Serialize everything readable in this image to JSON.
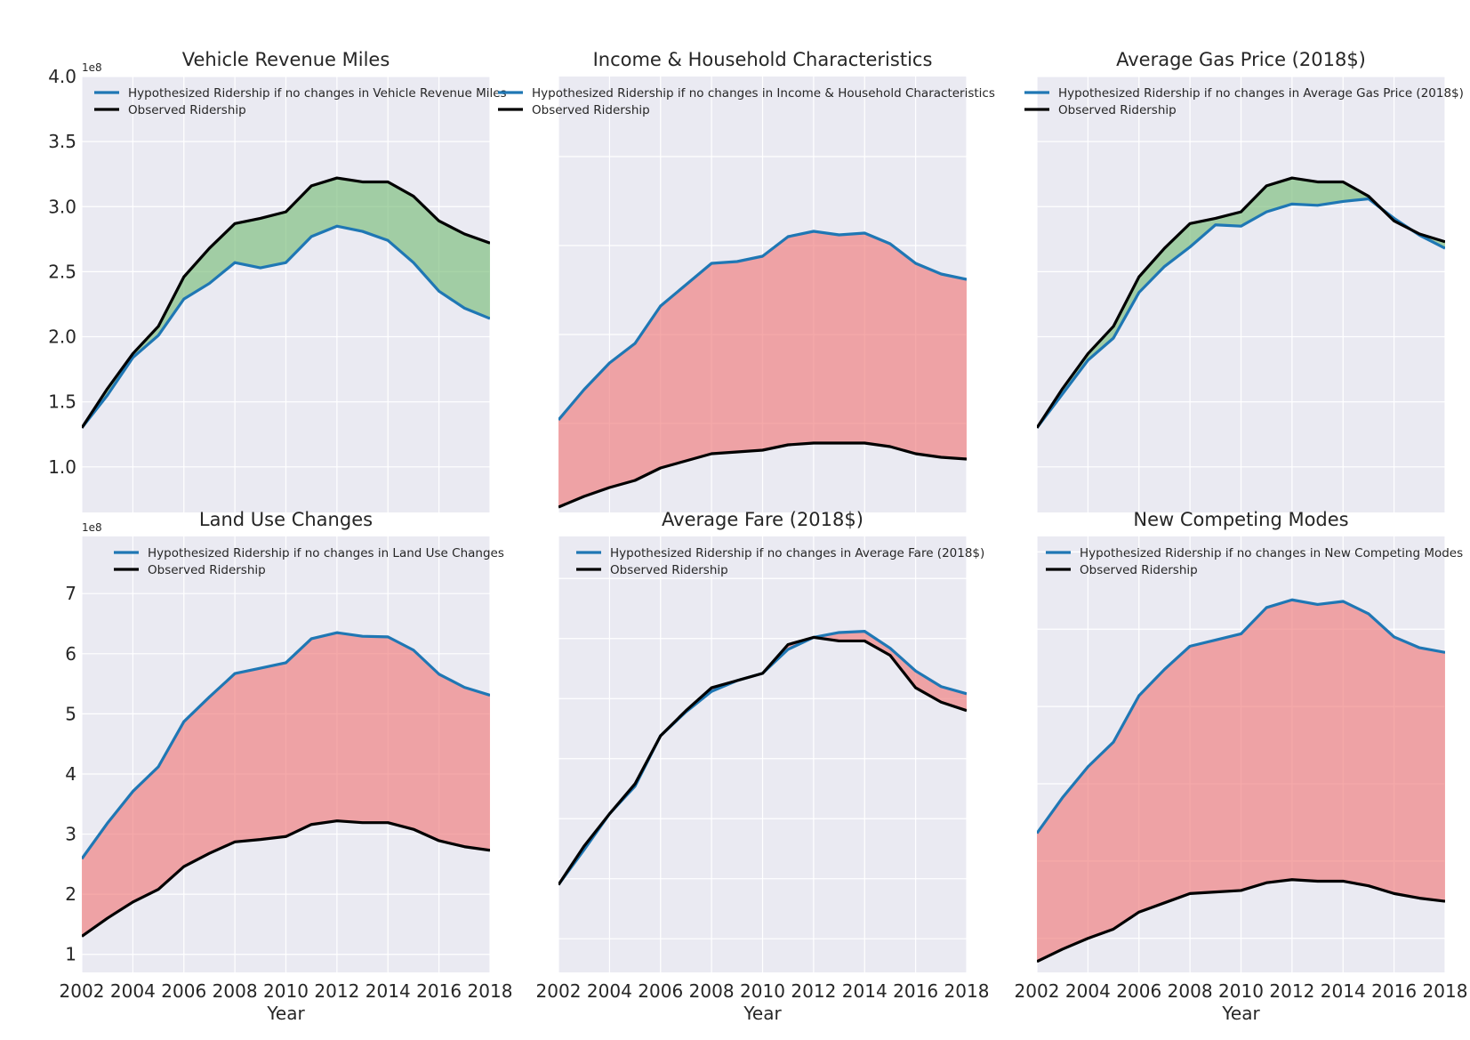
{
  "chart_data": [
    {
      "type": "line",
      "title": "Vehicle Revenue Miles",
      "xlabel": "",
      "ylabel": "",
      "x": [
        2002,
        2003,
        2004,
        2005,
        2006,
        2007,
        2008,
        2009,
        2010,
        2011,
        2012,
        2013,
        2014,
        2015,
        2016,
        2017,
        2018
      ],
      "xlim": [
        2002,
        2018
      ],
      "ylim": [
        0.65,
        4.0
      ],
      "yticks": [
        1.0,
        1.5,
        2.0,
        2.5,
        3.0,
        3.5,
        4.0
      ],
      "yticklabels": [
        "1.0",
        "1.5",
        "2.0",
        "2.5",
        "3.0",
        "3.5",
        "4.0"
      ],
      "xticklabels": [],
      "offset_text": "1e8",
      "series": [
        {
          "name": "Hypothesized Ridership if no changes in Vehicle Revenue Miles",
          "color": "#1f77b4",
          "values": [
            1.3,
            1.55,
            1.84,
            2.01,
            2.29,
            2.41,
            2.57,
            2.53,
            2.57,
            2.77,
            2.85,
            2.81,
            2.74,
            2.57,
            2.35,
            2.22,
            2.14
          ]
        },
        {
          "name": "Observed Ridership",
          "color": "#000000",
          "values": [
            1.3,
            1.6,
            1.87,
            2.08,
            2.46,
            2.68,
            2.87,
            2.91,
            2.96,
            3.16,
            3.22,
            3.19,
            3.19,
            3.08,
            2.89,
            2.79,
            2.72
          ]
        }
      ],
      "fill_color": "#7fbf7f",
      "legend": "top-left",
      "grid": true
    },
    {
      "type": "line",
      "title": "Income & Household Characteristics",
      "xlabel": "",
      "ylabel": "",
      "x": [
        2002,
        2003,
        2004,
        2005,
        2006,
        2007,
        2008,
        2009,
        2010,
        2011,
        2012,
        2013,
        2014,
        2015,
        2016,
        2017,
        2018
      ],
      "xlim": [
        2002,
        2018
      ],
      "ylim": [
        0.5,
        2.95
      ],
      "yticks": [
        1.0,
        1.5,
        2.0,
        2.5
      ],
      "yticklabels": [],
      "xticklabels": [],
      "offset_text": "",
      "series": [
        {
          "name": "Hypothesized Ridership if no changes in Income & Household Characteristics",
          "color": "#1f77b4",
          "values": [
            1.02,
            1.19,
            1.34,
            1.45,
            1.66,
            1.78,
            1.9,
            1.91,
            1.94,
            2.05,
            2.08,
            2.06,
            2.07,
            2.01,
            1.9,
            1.84,
            1.81
          ]
        },
        {
          "name": "Observed Ridership",
          "color": "#000000",
          "values": [
            0.53,
            0.59,
            0.64,
            0.68,
            0.75,
            0.79,
            0.83,
            0.84,
            0.85,
            0.88,
            0.89,
            0.89,
            0.89,
            0.87,
            0.83,
            0.81,
            0.8
          ]
        }
      ],
      "fill_color": "#f08080",
      "legend": "top-left",
      "grid": true
    },
    {
      "type": "line",
      "title": "Average Gas Price (2018$)",
      "xlabel": "",
      "ylabel": "",
      "x": [
        2002,
        2003,
        2004,
        2005,
        2006,
        2007,
        2008,
        2009,
        2010,
        2011,
        2012,
        2013,
        2014,
        2015,
        2016,
        2017,
        2018
      ],
      "xlim": [
        2002,
        2018
      ],
      "ylim": [
        0.65,
        4.0
      ],
      "yticks": [
        1.0,
        1.5,
        2.0,
        2.5,
        3.0,
        3.5,
        4.0
      ],
      "yticklabels": [],
      "xticklabels": [],
      "offset_text": "",
      "series": [
        {
          "name": "Hypothesized Ridership if no changes in Average Gas Price (2018$)",
          "color": "#1f77b4",
          "values": [
            1.3,
            1.56,
            1.82,
            1.99,
            2.34,
            2.54,
            2.69,
            2.86,
            2.85,
            2.96,
            3.02,
            3.01,
            3.04,
            3.06,
            2.91,
            2.78,
            2.68
          ]
        },
        {
          "name": "Observed Ridership",
          "color": "#000000",
          "values": [
            1.3,
            1.6,
            1.87,
            2.08,
            2.46,
            2.68,
            2.87,
            2.91,
            2.96,
            3.16,
            3.22,
            3.19,
            3.19,
            3.08,
            2.89,
            2.79,
            2.73
          ]
        }
      ],
      "fill_color": "#7fbf7f",
      "legend": "top-left",
      "grid": true
    },
    {
      "type": "line",
      "title": "Land Use Changes",
      "xlabel": "Year",
      "ylabel": "",
      "x": [
        2002,
        2003,
        2004,
        2005,
        2006,
        2007,
        2008,
        2009,
        2010,
        2011,
        2012,
        2013,
        2014,
        2015,
        2016,
        2017,
        2018
      ],
      "xlim": [
        2002,
        2018
      ],
      "ylim": [
        0.7,
        7.95
      ],
      "yticks": [
        1,
        2,
        3,
        4,
        5,
        6,
        7
      ],
      "yticklabels": [
        "1",
        "2",
        "3",
        "4",
        "5",
        "6",
        "7"
      ],
      "xticklabels": [
        "2002",
        "2004",
        "2006",
        "2008",
        "2010",
        "2012",
        "2014",
        "2016",
        "2018"
      ],
      "offset_text": "1e8",
      "series": [
        {
          "name": "Hypothesized Ridership if no changes in Land Use Changes",
          "color": "#1f77b4",
          "values": [
            2.59,
            3.18,
            3.71,
            4.12,
            4.87,
            5.28,
            5.67,
            5.76,
            5.85,
            6.25,
            6.35,
            6.29,
            6.28,
            6.06,
            5.66,
            5.44,
            5.31
          ]
        },
        {
          "name": "Observed Ridership",
          "color": "#000000",
          "values": [
            1.3,
            1.6,
            1.87,
            2.08,
            2.46,
            2.68,
            2.87,
            2.91,
            2.96,
            3.16,
            3.22,
            3.19,
            3.19,
            3.08,
            2.89,
            2.79,
            2.73
          ]
        }
      ],
      "fill_color": "#f08080",
      "legend": "top-right",
      "grid": true
    },
    {
      "type": "line",
      "title": "Average Fare (2018$)",
      "xlabel": "Year",
      "ylabel": "",
      "x": [
        2002,
        2003,
        2004,
        2005,
        2006,
        2007,
        2008,
        2009,
        2010,
        2011,
        2012,
        2013,
        2014,
        2015,
        2016,
        2017,
        2018
      ],
      "xlim": [
        2002,
        2018
      ],
      "ylim": [
        0.22,
        3.85
      ],
      "yticks": [
        0.5,
        1.0,
        1.5,
        2.0,
        2.5,
        3.0,
        3.5
      ],
      "yticklabels": [],
      "xticklabels": [
        "2002",
        "2004",
        "2006",
        "2008",
        "2010",
        "2012",
        "2014",
        "2016",
        "2018"
      ],
      "offset_text": "",
      "series": [
        {
          "name": "Hypothesized Ridership if no changes in Average Fare (2018$)",
          "color": "#1f77b4",
          "values": [
            0.95,
            1.24,
            1.54,
            1.77,
            2.19,
            2.39,
            2.56,
            2.65,
            2.71,
            2.91,
            3.01,
            3.05,
            3.06,
            2.92,
            2.73,
            2.6,
            2.54
          ]
        },
        {
          "name": "Observed Ridership",
          "color": "#000000",
          "values": [
            0.95,
            1.27,
            1.54,
            1.79,
            2.19,
            2.4,
            2.59,
            2.65,
            2.71,
            2.95,
            3.01,
            2.98,
            2.98,
            2.86,
            2.59,
            2.47,
            2.4
          ]
        }
      ],
      "fill_color": "#f08080",
      "legend": "top-left",
      "grid": true
    },
    {
      "type": "line",
      "title": "New Competing Modes",
      "xlabel": "Year",
      "ylabel": "",
      "x": [
        2002,
        2003,
        2004,
        2005,
        2006,
        2007,
        2008,
        2009,
        2010,
        2011,
        2012,
        2013,
        2014,
        2015,
        2016,
        2017,
        2018
      ],
      "xlim": [
        2002,
        2018
      ],
      "ylim": [
        0.28,
        3.1
      ],
      "yticks": [
        0.5,
        1.0,
        1.5,
        2.0,
        2.5,
        3.0
      ],
      "yticklabels": [],
      "xticklabels": [
        "2002",
        "2004",
        "2006",
        "2008",
        "2010",
        "2012",
        "2014",
        "2016",
        "2018"
      ],
      "offset_text": "",
      "series": [
        {
          "name": "Hypothesized Ridership if no changes in New Competing Modes",
          "color": "#1f77b4",
          "values": [
            1.18,
            1.41,
            1.61,
            1.77,
            2.07,
            2.24,
            2.39,
            2.43,
            2.47,
            2.64,
            2.69,
            2.66,
            2.68,
            2.6,
            2.45,
            2.38,
            2.35
          ]
        },
        {
          "name": "Observed Ridership",
          "color": "#000000",
          "values": [
            0.35,
            0.43,
            0.5,
            0.56,
            0.67,
            0.73,
            0.79,
            0.8,
            0.81,
            0.86,
            0.88,
            0.87,
            0.87,
            0.84,
            0.79,
            0.76,
            0.74
          ]
        }
      ],
      "fill_color": "#f08080",
      "legend": "top-left",
      "grid": true
    }
  ]
}
